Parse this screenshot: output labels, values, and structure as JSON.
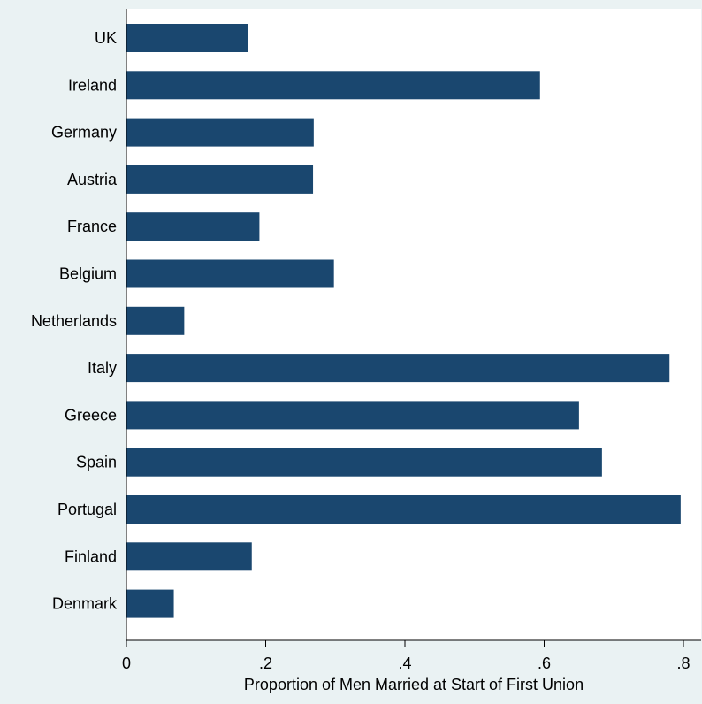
{
  "chart_data": {
    "type": "bar",
    "orientation": "horizontal",
    "categories": [
      "UK",
      "Ireland",
      "Germany",
      "Austria",
      "France",
      "Belgium",
      "Netherlands",
      "Italy",
      "Greece",
      "Spain",
      "Portugal",
      "Finland",
      "Denmark"
    ],
    "values": [
      0.175,
      0.594,
      0.269,
      0.268,
      0.191,
      0.298,
      0.083,
      0.78,
      0.65,
      0.683,
      0.796,
      0.18,
      0.068
    ],
    "title": "",
    "xlabel": "Proportion of Men Married at Start of First Union",
    "ylabel": "",
    "xlim": [
      0,
      0.8
    ],
    "xticks": [
      0,
      0.2,
      0.4,
      0.6,
      0.8
    ],
    "xtick_labels": [
      "0",
      ".2",
      ".4",
      ".6",
      ".8"
    ],
    "grid": false,
    "colors": {
      "bar": "#1a476f",
      "background": "#eaf2f3",
      "plot_background": "#ffffff",
      "axis": "#000000"
    }
  }
}
